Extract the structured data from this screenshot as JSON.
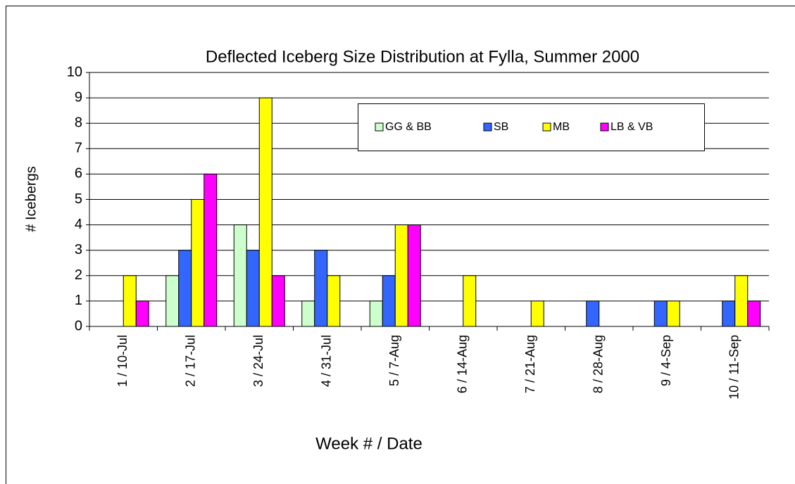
{
  "chart_data": {
    "type": "bar",
    "title": "Deflected Iceberg Size Distribution at Fylla, Summer 2000",
    "x_label": "Week # / Date",
    "y_label": "# Icebergs",
    "categories": [
      "1 /  10-Jul",
      "2 /  17-Jul",
      "3 /  24-Jul",
      "4 /  31-Jul",
      "5 /  7-Aug",
      "6 /  14-Aug",
      "7 /  21-Aug",
      "8 /  28-Aug",
      "9 /  4-Sep",
      "10 /  11-Sep"
    ],
    "series": [
      {
        "name": "GG & BB",
        "color": "#ccffcc",
        "values": [
          0,
          2,
          4,
          1,
          1,
          0,
          0,
          0,
          0,
          0
        ]
      },
      {
        "name": "SB",
        "color": "#3366ff",
        "values": [
          0,
          3,
          3,
          3,
          2,
          0,
          0,
          1,
          1,
          1
        ]
      },
      {
        "name": "MB",
        "color": "#ffff00",
        "values": [
          2,
          5,
          9,
          2,
          4,
          2,
          1,
          0,
          1,
          2
        ]
      },
      {
        "name": "LB & VB",
        "color": "#ff00ff",
        "values": [
          1,
          6,
          2,
          0,
          4,
          0,
          0,
          0,
          0,
          1
        ]
      }
    ],
    "ylim": [
      0,
      10
    ],
    "yticks": [
      0,
      1,
      2,
      3,
      4,
      5,
      6,
      7,
      8,
      9,
      10
    ],
    "grid": true
  }
}
